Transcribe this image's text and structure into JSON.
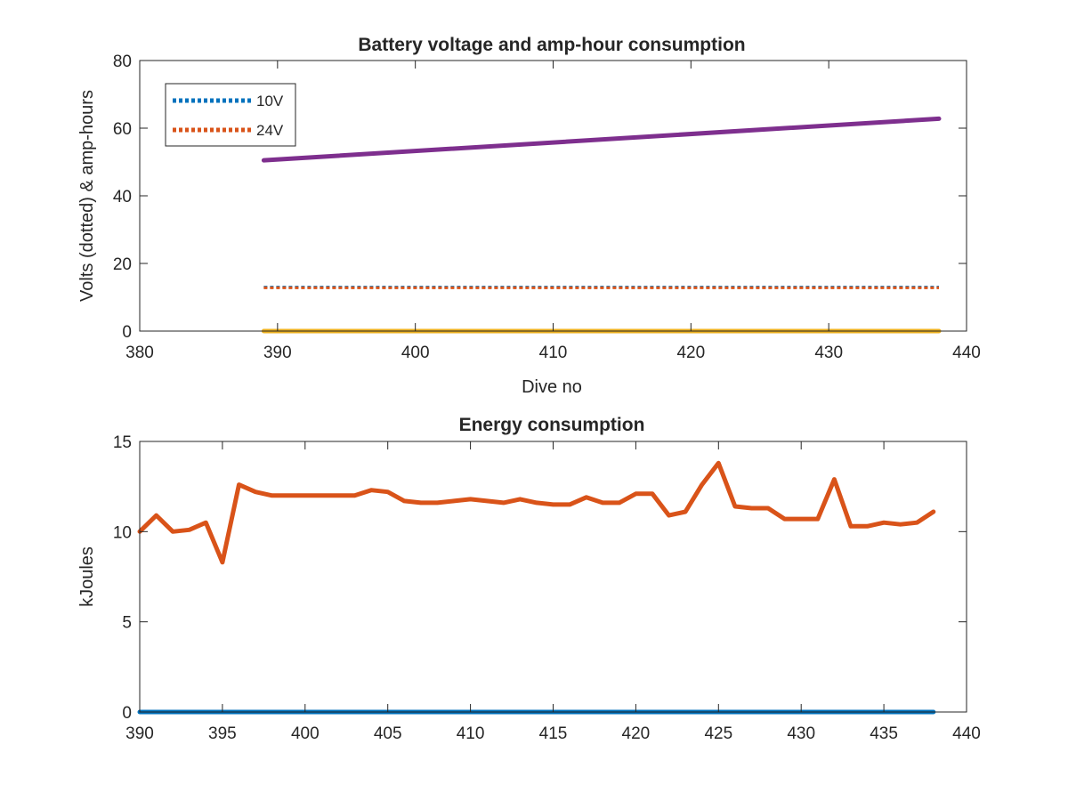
{
  "chart_data": [
    {
      "type": "line",
      "title": "Battery voltage and amp-hour consumption",
      "xlabel": "Dive no",
      "ylabel": "Volts (dotted) & amp-hours",
      "xlim": [
        380,
        440
      ],
      "ylim": [
        0,
        80
      ],
      "xticks": [
        380,
        390,
        400,
        410,
        420,
        430,
        440
      ],
      "yticks": [
        0,
        20,
        40,
        60,
        80
      ],
      "grid": false,
      "legend_position": "top-left",
      "series": [
        {
          "name": "10V",
          "style": "dotted",
          "color": "#0072BD",
          "x": [
            389,
            438
          ],
          "y": [
            13,
            13
          ]
        },
        {
          "name": "24V",
          "style": "dotted",
          "color": "#D95319",
          "x": [
            389,
            438
          ],
          "y": [
            12.8,
            12.8
          ]
        },
        {
          "style": "solid",
          "color": "#EDB120",
          "x": [
            389,
            438
          ],
          "y": [
            0,
            0
          ]
        },
        {
          "style": "solid",
          "color": "#7E2F8E",
          "x": [
            389,
            438
          ],
          "y": [
            50.5,
            62.8
          ]
        }
      ]
    },
    {
      "type": "line",
      "title": "Energy consumption",
      "xlabel": "",
      "ylabel": "kJoules",
      "xlim": [
        390,
        440
      ],
      "ylim": [
        0,
        15
      ],
      "xticks": [
        390,
        395,
        400,
        405,
        410,
        415,
        420,
        425,
        430,
        435,
        440
      ],
      "yticks": [
        0,
        5,
        10,
        15
      ],
      "grid": false,
      "series": [
        {
          "style": "solid",
          "color": "#D95319",
          "x": [
            390,
            391,
            392,
            393,
            394,
            395,
            396,
            397,
            398,
            399,
            400,
            401,
            402,
            403,
            404,
            405,
            406,
            407,
            408,
            409,
            410,
            411,
            412,
            413,
            414,
            415,
            416,
            417,
            418,
            419,
            420,
            421,
            422,
            423,
            424,
            425,
            426,
            427,
            428,
            429,
            430,
            431,
            432,
            433,
            434,
            435,
            436,
            437,
            438
          ],
          "y": [
            10.0,
            10.9,
            10.0,
            10.1,
            10.5,
            8.3,
            12.6,
            12.2,
            12.0,
            12.0,
            12.0,
            12.0,
            12.0,
            12.0,
            12.3,
            12.2,
            11.7,
            11.6,
            11.6,
            11.7,
            11.8,
            11.7,
            11.6,
            11.8,
            11.6,
            11.5,
            11.5,
            11.9,
            11.6,
            11.6,
            12.1,
            12.1,
            10.9,
            11.1,
            12.6,
            13.8,
            11.4,
            11.3,
            11.3,
            10.7,
            10.7,
            10.7,
            12.9,
            10.3,
            10.3,
            10.5,
            10.4,
            10.5,
            11.1
          ]
        },
        {
          "style": "solid",
          "color": "#0072BD",
          "x": [
            390,
            438
          ],
          "y": [
            0,
            0
          ]
        }
      ]
    }
  ]
}
